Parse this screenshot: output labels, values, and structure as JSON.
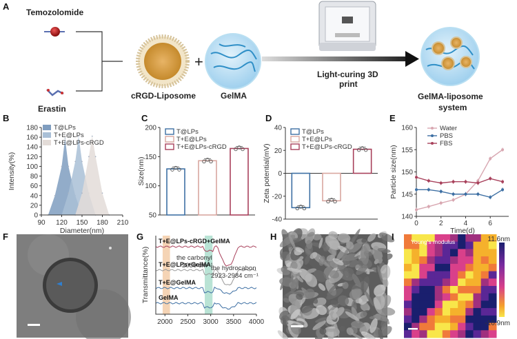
{
  "panels": {
    "A": "A",
    "B": "B",
    "C": "C",
    "D": "D",
    "E": "E",
    "F": "F",
    "G": "G",
    "H": "H",
    "I": "I"
  },
  "schematic": {
    "temozolomide": "Temozolomide",
    "erastin": "Erastin",
    "liposome": "cRGD-Liposome",
    "plus": "+",
    "gelma": "GelMA",
    "print": "Light-curing 3D",
    "print2": "print",
    "system1": "GelMA-liposome",
    "system2": "system"
  },
  "chart_data": [
    {
      "id": "B",
      "type": "area",
      "xlabel": "Diameter(nm)",
      "ylabel": "Intensity(%)",
      "xlim": [
        90,
        210
      ],
      "ylim": [
        0,
        180
      ],
      "xticks": [
        90,
        120,
        150,
        180,
        210
      ],
      "yticks": [
        0,
        20,
        40,
        60,
        80,
        100,
        120,
        140,
        160,
        180
      ],
      "series": [
        {
          "name": "T@LPs",
          "color": "#7f9dbf",
          "x": [
            100,
            110,
            120,
            125,
            130,
            140,
            150
          ],
          "y": [
            0,
            40,
            100,
            158,
            100,
            40,
            0
          ]
        },
        {
          "name": "T+E@LPs",
          "color": "#a9bfd6",
          "x": [
            120,
            130,
            140,
            145,
            150,
            160,
            170
          ],
          "y": [
            0,
            45,
            110,
            162,
            110,
            45,
            0
          ]
        },
        {
          "name": "T+E@LPs-cRGD",
          "color": "#e3dcd8",
          "x": [
            140,
            150,
            160,
            165,
            170,
            180,
            190
          ],
          "y": [
            0,
            45,
            120,
            162,
            120,
            45,
            0
          ]
        }
      ]
    },
    {
      "id": "C",
      "type": "bar",
      "ylabel": "Size(nm)",
      "ylim": [
        50,
        200
      ],
      "yticks": [
        50,
        100,
        150,
        200
      ],
      "categories": [
        "T@LPs",
        "T+E@LPs",
        "T+E@LPs-cRGD"
      ],
      "values": [
        129,
        143,
        164
      ],
      "colors": [
        "#3d6fa3",
        "#d9a7a0",
        "#a8405b"
      ]
    },
    {
      "id": "D",
      "type": "bar",
      "ylabel": "Zeta potential(mV)",
      "ylim": [
        -40,
        40
      ],
      "yticks": [
        -40,
        -20,
        0,
        20,
        40
      ],
      "categories": [
        "T@LPs",
        "T+E@LPs",
        "T+E@LPs-cRGD"
      ],
      "values": [
        -30,
        -24,
        21
      ],
      "colors": [
        "#3d6fa3",
        "#d9a7a0",
        "#a8405b"
      ]
    },
    {
      "id": "E",
      "type": "line",
      "xlabel": "Time(d)",
      "ylabel": "Particle size(nm)",
      "xlim": [
        0,
        7.5
      ],
      "ylim": [
        140,
        160
      ],
      "xticks": [
        0,
        2,
        4,
        6
      ],
      "yticks": [
        140,
        145,
        150,
        155,
        160
      ],
      "x": [
        0,
        1,
        2,
        3,
        4,
        5,
        6,
        7
      ],
      "series": [
        {
          "name": "Water",
          "color": "#d8a7b1",
          "values": [
            141.5,
            142.2,
            143,
            143.7,
            145,
            148,
            153,
            155
          ]
        },
        {
          "name": "PBS",
          "color": "#3d6fa3",
          "values": [
            146,
            146,
            145.6,
            145,
            145,
            145,
            144.3,
            146
          ]
        },
        {
          "name": "FBS",
          "color": "#a8405b",
          "values": [
            148.8,
            148,
            147.5,
            147.8,
            147.8,
            147.5,
            148.5,
            147.8
          ]
        }
      ]
    },
    {
      "id": "G",
      "type": "line",
      "xlabel": "",
      "ylabel": "Transmittance(%)",
      "xlim": [
        1800,
        4000
      ],
      "xticks": [
        2000,
        2500,
        3000,
        3500,
        4000
      ],
      "series": [
        {
          "name": "T+E@LPs-cRGD+GelMA",
          "color": "#a8405b"
        },
        {
          "name": "T+E@LPs+GelMA",
          "color": "#999999"
        },
        {
          "name": "T+E@GelMA",
          "color": "#3d6fa3"
        },
        {
          "name": "GelMA",
          "color": "#3d6fa3"
        }
      ],
      "annotations": [
        "the carbonyl",
        "2030 cm⁻¹",
        "the hydrocabon",
        "2923-2984 cm⁻¹"
      ]
    },
    {
      "id": "I",
      "type": "heatmap",
      "title": "Young's  modulus",
      "colorbar": {
        "max": "11.6nm",
        "min": "-10.9nm"
      }
    }
  ]
}
